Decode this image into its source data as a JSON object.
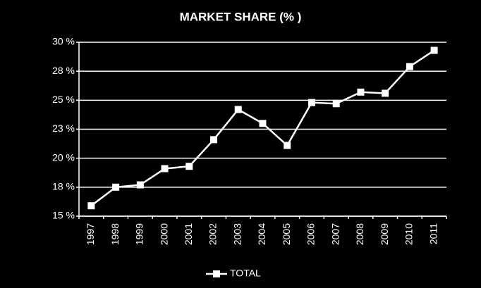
{
  "chart_data": {
    "type": "line",
    "title": "MARKET SHARE (% )",
    "categories": [
      "1997",
      "1998",
      "1999",
      "2000",
      "2001",
      "2002",
      "2003",
      "2004",
      "2005",
      "2006",
      "2007",
      "2008",
      "2009",
      "2010",
      "2011"
    ],
    "series": [
      {
        "name": "TOTAL",
        "color": "#ffffff",
        "values": [
          15.9,
          17.5,
          17.7,
          19.1,
          19.3,
          21.6,
          24.2,
          23.0,
          21.1,
          24.8,
          24.7,
          25.7,
          25.6,
          27.9,
          29.3
        ]
      }
    ],
    "ylim": [
      15,
      30
    ],
    "yticks": [
      {
        "value": 15,
        "label": "15 %"
      },
      {
        "value": 17.5,
        "label": "18 %"
      },
      {
        "value": 20,
        "label": "20 %"
      },
      {
        "value": 22.5,
        "label": "23 %"
      },
      {
        "value": 25,
        "label": "25 %"
      },
      {
        "value": 27.5,
        "label": "28 %"
      },
      {
        "value": 30,
        "label": "30 %"
      }
    ],
    "grid": true,
    "legend": "bottom"
  }
}
